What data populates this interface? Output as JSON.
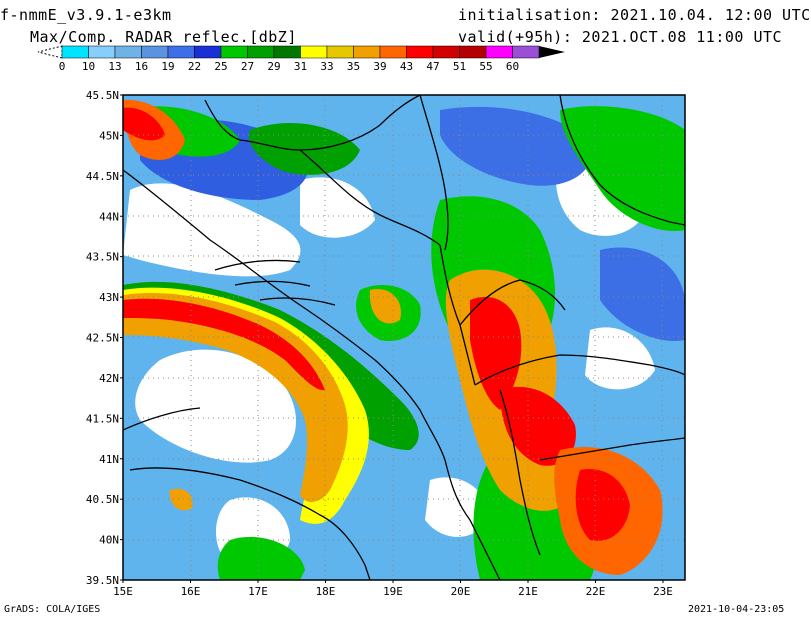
{
  "header": {
    "model": "f-nmmE_v3.9.1-e3km",
    "field": "Max/Comp. RADAR reflec.[dbZ]",
    "init_label": "initialisation:",
    "init_time": "2021.10.04. 12:00 UTC",
    "valid_label": "valid(+95h):",
    "valid_time": "2021.OCT.08 11:00 UTC"
  },
  "colorbar": {
    "labels": [
      "0",
      "10",
      "13",
      "16",
      "19",
      "22",
      "25",
      "27",
      "29",
      "31",
      "33",
      "35",
      "39",
      "43",
      "47",
      "51",
      "55",
      "60"
    ],
    "colors": [
      "#00e5ff",
      "#87cefa",
      "#6fb2e6",
      "#5a94e0",
      "#3f6fe8",
      "#1a2fd6",
      "#00c800",
      "#00a000",
      "#007800",
      "#ffff00",
      "#e6c800",
      "#f0a000",
      "#ff6600",
      "#ff0000",
      "#d20000",
      "#b40000",
      "#ff00ff",
      "#9a4fd6"
    ]
  },
  "map": {
    "lat_labels": [
      "45.5N",
      "45N",
      "44.5N",
      "44N",
      "43.5N",
      "43N",
      "42.5N",
      "42N",
      "41.5N",
      "41N",
      "40.5N",
      "40N",
      "39.5N"
    ],
    "lon_labels": [
      "15E",
      "16E",
      "17E",
      "18E",
      "19E",
      "20E",
      "21E",
      "22E",
      "23E"
    ]
  },
  "footer": {
    "credit": "GrADS: COLA/IGES",
    "rendered": "2021-10-04-23:05"
  }
}
